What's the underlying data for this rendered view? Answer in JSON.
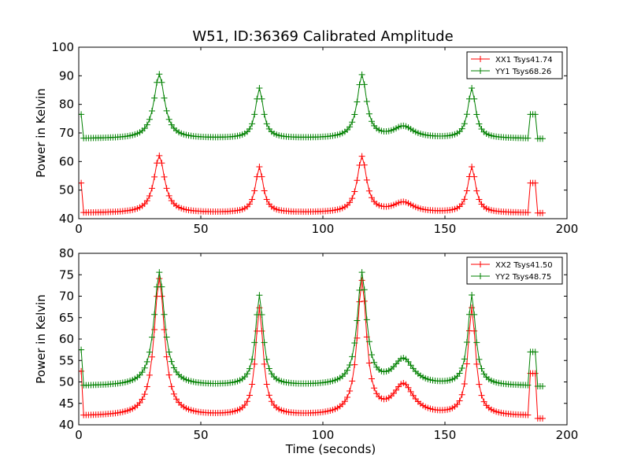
{
  "figure_title": "W51, ID:36369 Calibrated Amplitude",
  "chart_data": [
    {
      "type": "line",
      "title": "W51, ID:36369 Calibrated Amplitude",
      "xlabel": "",
      "ylabel": "Power in Kelvin",
      "xlim": [
        0,
        200
      ],
      "ylim": [
        40,
        100
      ],
      "xticks": [
        0,
        50,
        100,
        150,
        200
      ],
      "yticks": [
        40,
        50,
        60,
        70,
        80,
        90,
        100
      ],
      "grid": false,
      "legend_position": "top-right",
      "series": [
        {
          "name": "XX1 Tsys41.74",
          "color": "#ff0000",
          "baseline": 42,
          "peaks": [
            [
              33,
              62
            ],
            [
              74,
              58
            ],
            [
              116,
              61.5
            ],
            [
              133,
              45.5
            ],
            [
              161,
              58
            ]
          ],
          "cal_on_start": [
            0,
            52.5
          ],
          "cal_on_end": [
            185,
            52.5
          ],
          "end": [
            190,
            42
          ]
        },
        {
          "name": "YY1 Tsys68.26",
          "color": "#008000",
          "baseline": 68,
          "peaks": [
            [
              33,
              90.5
            ],
            [
              74,
              85.5
            ],
            [
              116,
              90
            ],
            [
              133,
              72
            ],
            [
              161,
              85.5
            ]
          ],
          "cal_on_start": [
            0,
            76.5
          ],
          "cal_on_end": [
            185,
            76.5
          ],
          "end": [
            190,
            68
          ]
        }
      ]
    },
    {
      "type": "line",
      "title": "",
      "xlabel": "Time (seconds)",
      "ylabel": "Power in Kelvin",
      "xlim": [
        0,
        200
      ],
      "ylim": [
        40,
        80
      ],
      "xticks": [
        0,
        50,
        100,
        150,
        200
      ],
      "yticks": [
        40,
        45,
        50,
        55,
        60,
        65,
        70,
        75,
        80
      ],
      "grid": false,
      "legend_position": "top-right",
      "series": [
        {
          "name": "XX2 Tsys41.50",
          "color": "#ff0000",
          "baseline": 42,
          "peaks": [
            [
              33,
              74
            ],
            [
              74,
              67
            ],
            [
              116,
              73
            ],
            [
              133,
              49
            ],
            [
              161,
              67
            ]
          ],
          "cal_on_start": [
            0,
            52.5
          ],
          "cal_on_end": [
            185,
            52
          ],
          "end": [
            190,
            41.5
          ]
        },
        {
          "name": "YY2 Tsys48.75",
          "color": "#008000",
          "baseline": 49,
          "peaks": [
            [
              33,
              75.5
            ],
            [
              74,
              70
            ],
            [
              116,
              75
            ],
            [
              133,
              55
            ],
            [
              161,
              70
            ]
          ],
          "cal_on_start": [
            0,
            57.5
          ],
          "cal_on_end": [
            185,
            57
          ],
          "end": [
            190,
            49
          ]
        }
      ]
    }
  ]
}
